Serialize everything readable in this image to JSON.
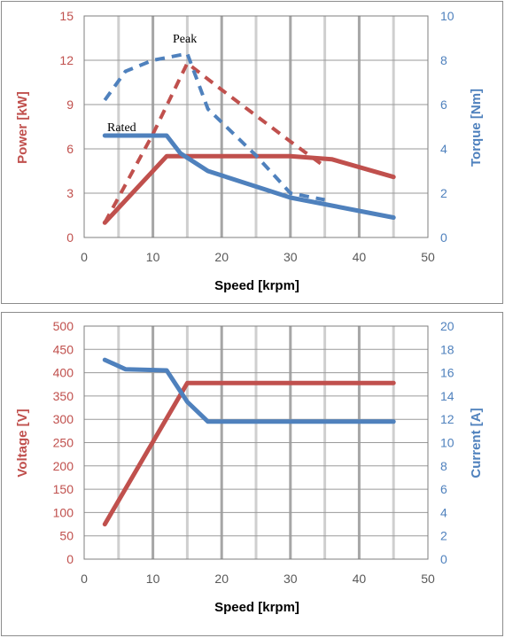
{
  "chart_data": [
    {
      "type": "line",
      "xlabel": "Speed [krpm]",
      "ylabel_left": "Power [kW]",
      "ylabel_right": "Torque [Nm]",
      "xlim": [
        0,
        50
      ],
      "ylim_left": [
        0,
        15
      ],
      "ylim_right": [
        0,
        10
      ],
      "x_ticks": [
        "0",
        "10",
        "20",
        "30",
        "40",
        "50"
      ],
      "y_left_ticks": [
        "0",
        "3",
        "6",
        "9",
        "12",
        "15"
      ],
      "y_right_ticks": [
        "0",
        "2",
        "4",
        "6",
        "8",
        "10"
      ],
      "grid": true,
      "colors": {
        "power": "#c0504d",
        "torque": "#4f81bd"
      },
      "series": [
        {
          "key": "rated_power",
          "axis": "left",
          "style": "solid",
          "color": "#c0504d",
          "x": [
            3,
            12,
            20,
            30,
            36,
            45
          ],
          "y": [
            1.0,
            5.5,
            5.5,
            5.5,
            5.3,
            4.1
          ]
        },
        {
          "key": "peak_power",
          "axis": "left",
          "style": "dashed",
          "color": "#c0504d",
          "x": [
            3,
            10,
            15,
            20,
            30,
            35
          ],
          "y": [
            1.0,
            7.0,
            11.8,
            10.0,
            6.5,
            4.8
          ]
        },
        {
          "key": "rated_torque",
          "axis": "right",
          "style": "solid",
          "color": "#4f81bd",
          "x": [
            3,
            12,
            14,
            18,
            30,
            45
          ],
          "y": [
            4.6,
            4.6,
            3.8,
            3.0,
            1.8,
            0.9
          ]
        },
        {
          "key": "peak_torque",
          "axis": "right",
          "style": "dashed",
          "color": "#4f81bd",
          "x": [
            3,
            6,
            10,
            15,
            18,
            25,
            30,
            35
          ],
          "y": [
            6.2,
            7.5,
            8.0,
            8.3,
            5.8,
            3.7,
            2.0,
            1.7
          ]
        }
      ],
      "annotations": [
        {
          "text": "Peak",
          "x": 15,
          "y_right": 8.9
        },
        {
          "text": "Rated",
          "x": 6.5,
          "y_right": 4.9
        }
      ]
    },
    {
      "type": "line",
      "xlabel": "Speed [krpm]",
      "ylabel_left": "Voltage [V]",
      "ylabel_right": "Current [A]",
      "xlim": [
        0,
        50
      ],
      "ylim_left": [
        0,
        500
      ],
      "ylim_right": [
        0,
        20
      ],
      "x_ticks": [
        "0",
        "10",
        "20",
        "30",
        "40",
        "50"
      ],
      "y_left_ticks": [
        "0",
        "50",
        "100",
        "150",
        "200",
        "250",
        "300",
        "350",
        "400",
        "450",
        "500"
      ],
      "y_right_ticks": [
        "0",
        "2",
        "4",
        "6",
        "8",
        "10",
        "12",
        "14",
        "16",
        "18",
        "20"
      ],
      "grid": true,
      "colors": {
        "voltage": "#c0504d",
        "current": "#4f81bd"
      },
      "series": [
        {
          "key": "voltage",
          "axis": "left",
          "style": "solid",
          "color": "#c0504d",
          "x": [
            3,
            15,
            45
          ],
          "y": [
            75,
            378,
            378
          ]
        },
        {
          "key": "current",
          "axis": "right",
          "style": "solid",
          "color": "#4f81bd",
          "x": [
            3,
            6,
            12,
            15,
            18,
            45
          ],
          "y": [
            17.1,
            16.3,
            16.2,
            13.5,
            11.8,
            11.8
          ]
        }
      ]
    }
  ]
}
